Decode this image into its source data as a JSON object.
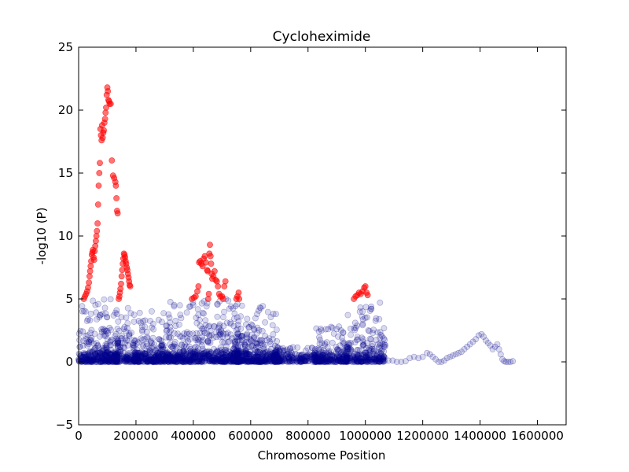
{
  "chart_data": {
    "type": "scatter",
    "title": "Cycloheximide",
    "xlabel": "Chromosome Position",
    "ylabel": "-log10 (P)",
    "xlim": [
      0,
      1700000
    ],
    "ylim": [
      -5,
      25
    ],
    "x_ticks": [
      0,
      200000,
      400000,
      600000,
      800000,
      1000000,
      1200000,
      1400000,
      1600000
    ],
    "x_tick_labels": [
      "0",
      "200000",
      "400000",
      "600000",
      "800000",
      "1000000",
      "1200000",
      "1400000",
      "1600000"
    ],
    "y_ticks": [
      -5,
      0,
      5,
      10,
      15,
      20,
      25
    ],
    "y_tick_labels": [
      "−5",
      "0",
      "5",
      "10",
      "15",
      "20",
      "25"
    ],
    "grid": false,
    "colors": {
      "significant": "#ff0000",
      "background": "#00008b"
    },
    "series": [
      {
        "color": "#ff0000",
        "points": [
          [
            18000,
            5.0
          ],
          [
            22000,
            5.2
          ],
          [
            26000,
            5.4
          ],
          [
            30000,
            5.6
          ],
          [
            33000,
            5.9
          ],
          [
            36000,
            6.3
          ],
          [
            38000,
            6.8
          ],
          [
            40000,
            7.2
          ],
          [
            42000,
            7.6
          ],
          [
            44000,
            8.0
          ],
          [
            46000,
            8.5
          ],
          [
            48000,
            8.7
          ],
          [
            50000,
            8.9
          ],
          [
            52000,
            8.3
          ],
          [
            54000,
            8.1
          ],
          [
            56000,
            8.8
          ],
          [
            58000,
            9.2
          ],
          [
            60000,
            9.6
          ],
          [
            62000,
            10.0
          ],
          [
            64000,
            10.4
          ],
          [
            66000,
            11.0
          ],
          [
            68000,
            12.5
          ],
          [
            70000,
            14.0
          ],
          [
            72000,
            15.0
          ],
          [
            74000,
            15.8
          ],
          [
            76000,
            18.5
          ],
          [
            78000,
            18.0
          ],
          [
            80000,
            17.6
          ],
          [
            82000,
            18.8
          ],
          [
            84000,
            17.8
          ],
          [
            86000,
            18.2
          ],
          [
            88000,
            18.4
          ],
          [
            90000,
            19.0
          ],
          [
            92000,
            19.3
          ],
          [
            94000,
            19.8
          ],
          [
            96000,
            20.2
          ],
          [
            98000,
            21.2
          ],
          [
            100000,
            21.8
          ],
          [
            102000,
            21.5
          ],
          [
            104000,
            20.8
          ],
          [
            106000,
            20.7
          ],
          [
            108000,
            20.5
          ],
          [
            112000,
            20.5
          ],
          [
            116000,
            16.0
          ],
          [
            120000,
            14.8
          ],
          [
            124000,
            14.6
          ],
          [
            128000,
            14.3
          ],
          [
            130000,
            14.0
          ],
          [
            132000,
            13.0
          ],
          [
            134000,
            12.0
          ],
          [
            136000,
            11.8
          ],
          [
            140000,
            5.0
          ],
          [
            142000,
            5.2
          ],
          [
            144000,
            5.5
          ],
          [
            146000,
            5.8
          ],
          [
            148000,
            6.2
          ],
          [
            150000,
            6.8
          ],
          [
            152000,
            7.3
          ],
          [
            154000,
            7.8
          ],
          [
            156000,
            8.2
          ],
          [
            158000,
            8.6
          ],
          [
            160000,
            8.5
          ],
          [
            162000,
            8.3
          ],
          [
            164000,
            8.0
          ],
          [
            166000,
            7.8
          ],
          [
            168000,
            7.5
          ],
          [
            170000,
            7.3
          ],
          [
            172000,
            7.0
          ],
          [
            174000,
            6.7
          ],
          [
            176000,
            6.4
          ],
          [
            178000,
            6.1
          ],
          [
            180000,
            6.0
          ],
          [
            395000,
            5.0
          ],
          [
            402000,
            5.1
          ],
          [
            408000,
            5.2
          ],
          [
            414000,
            5.6
          ],
          [
            418000,
            6.0
          ],
          [
            420000,
            7.9
          ],
          [
            424000,
            8.0
          ],
          [
            428000,
            7.8
          ],
          [
            432000,
            7.6
          ],
          [
            436000,
            8.2
          ],
          [
            440000,
            8.4
          ],
          [
            444000,
            7.9
          ],
          [
            448000,
            7.3
          ],
          [
            450000,
            7.2
          ],
          [
            452000,
            5.0
          ],
          [
            454000,
            5.4
          ],
          [
            456000,
            8.6
          ],
          [
            458000,
            9.3
          ],
          [
            460000,
            8.4
          ],
          [
            462000,
            7.8
          ],
          [
            464000,
            7.0
          ],
          [
            466000,
            6.6
          ],
          [
            470000,
            6.8
          ],
          [
            474000,
            7.2
          ],
          [
            478000,
            6.5
          ],
          [
            482000,
            6.4
          ],
          [
            486000,
            6.0
          ],
          [
            490000,
            5.4
          ],
          [
            494000,
            5.2
          ],
          [
            500000,
            5.2
          ],
          [
            504000,
            5.0
          ],
          [
            508000,
            6.0
          ],
          [
            512000,
            6.4
          ],
          [
            550000,
            5.0
          ],
          [
            554000,
            5.2
          ],
          [
            558000,
            5.5
          ],
          [
            560000,
            5.0
          ],
          [
            960000,
            5.0
          ],
          [
            966000,
            5.2
          ],
          [
            972000,
            5.3
          ],
          [
            978000,
            5.5
          ],
          [
            984000,
            5.4
          ],
          [
            990000,
            5.6
          ],
          [
            996000,
            5.9
          ],
          [
            1000000,
            6.0
          ],
          [
            1004000,
            5.5
          ],
          [
            1008000,
            5.3
          ]
        ]
      },
      {
        "color": "#00008b",
        "bands": [
          [
            0,
            140000,
            0.0,
            5.0
          ],
          [
            0,
            140000,
            0.0,
            2.5
          ],
          [
            0,
            140000,
            0.0,
            0.8
          ],
          [
            0,
            140000,
            0.0,
            0.8
          ],
          [
            130000,
            200000,
            0.0,
            4.8
          ],
          [
            130000,
            200000,
            0.0,
            2.5
          ],
          [
            130000,
            200000,
            0.0,
            0.8
          ],
          [
            190000,
            300000,
            0.0,
            4.3
          ],
          [
            190000,
            300000,
            0.0,
            2.0
          ],
          [
            190000,
            300000,
            0.0,
            0.8
          ],
          [
            190000,
            300000,
            0.0,
            0.8
          ],
          [
            300000,
            420000,
            0.0,
            4.8
          ],
          [
            300000,
            420000,
            0.0,
            2.5
          ],
          [
            300000,
            420000,
            0.0,
            0.8
          ],
          [
            300000,
            420000,
            0.0,
            0.8
          ],
          [
            420000,
            560000,
            0.0,
            5.0
          ],
          [
            420000,
            560000,
            0.0,
            3.0
          ],
          [
            420000,
            560000,
            0.0,
            0.8
          ],
          [
            420000,
            560000,
            0.0,
            0.8
          ],
          [
            540000,
            700000,
            0.0,
            4.5
          ],
          [
            540000,
            700000,
            0.0,
            2.2
          ],
          [
            540000,
            700000,
            0.0,
            0.8
          ],
          [
            540000,
            700000,
            0.0,
            0.8
          ],
          [
            680000,
            840000,
            0.0,
            1.2
          ],
          [
            680000,
            840000,
            0.0,
            0.6
          ],
          [
            820000,
            940000,
            0.0,
            2.8
          ],
          [
            820000,
            940000,
            0.0,
            1.2
          ],
          [
            820000,
            940000,
            0.0,
            0.6
          ],
          [
            930000,
            1070000,
            0.0,
            4.8
          ],
          [
            930000,
            1070000,
            0.0,
            1.5
          ],
          [
            930000,
            1070000,
            0.0,
            0.6
          ]
        ],
        "points": [
          [
            1080000,
            0.1
          ],
          [
            1095000,
            0.1
          ],
          [
            1110000,
            0.0
          ],
          [
            1125000,
            0.0
          ],
          [
            1140000,
            0.05
          ],
          [
            1155000,
            0.3
          ],
          [
            1170000,
            0.4
          ],
          [
            1185000,
            0.3
          ],
          [
            1200000,
            0.4
          ],
          [
            1215000,
            0.7
          ],
          [
            1225000,
            0.6
          ],
          [
            1235000,
            0.4
          ],
          [
            1245000,
            0.2
          ],
          [
            1255000,
            0.0
          ],
          [
            1265000,
            0.0
          ],
          [
            1275000,
            0.1
          ],
          [
            1285000,
            0.3
          ],
          [
            1295000,
            0.4
          ],
          [
            1305000,
            0.5
          ],
          [
            1315000,
            0.6
          ],
          [
            1325000,
            0.7
          ],
          [
            1335000,
            0.8
          ],
          [
            1345000,
            1.0
          ],
          [
            1355000,
            1.2
          ],
          [
            1365000,
            1.4
          ],
          [
            1375000,
            1.6
          ],
          [
            1385000,
            1.8
          ],
          [
            1395000,
            2.1
          ],
          [
            1405000,
            2.2
          ],
          [
            1412000,
            2.0
          ],
          [
            1420000,
            1.7
          ],
          [
            1428000,
            1.5
          ],
          [
            1436000,
            1.3
          ],
          [
            1444000,
            1.0
          ],
          [
            1452000,
            1.2
          ],
          [
            1460000,
            1.4
          ],
          [
            1466000,
            1.0
          ],
          [
            1472000,
            0.6
          ],
          [
            1478000,
            0.2
          ],
          [
            1484000,
            0.05
          ],
          [
            1490000,
            0.0
          ],
          [
            1498000,
            0.0
          ],
          [
            1506000,
            0.0
          ],
          [
            1514000,
            0.05
          ],
          [
            1000000,
            3.5
          ],
          [
            1010000,
            2.5
          ],
          [
            1020000,
            1.8
          ],
          [
            1030000,
            1.0
          ],
          [
            1040000,
            0.6
          ],
          [
            1050000,
            0.3
          ],
          [
            1060000,
            0.1
          ],
          [
            870000,
            2.6
          ],
          [
            885000,
            2.7
          ],
          [
            900000,
            2.6
          ],
          [
            915000,
            2.5
          ],
          [
            990000,
            4.0
          ]
        ]
      }
    ]
  }
}
